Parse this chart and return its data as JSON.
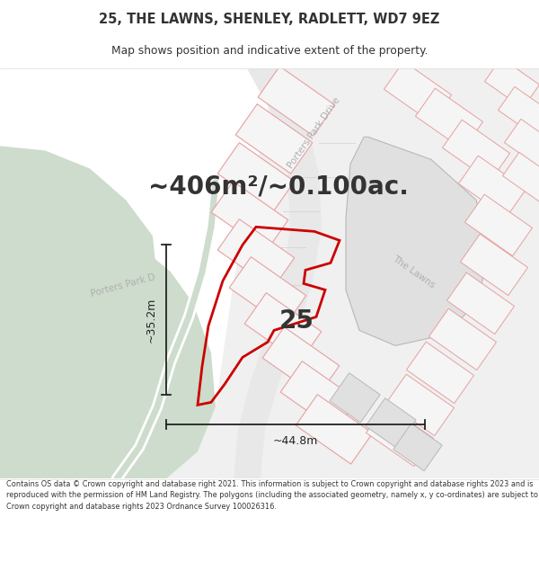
{
  "title_line1": "25, THE LAWNS, SHENLEY, RADLETT, WD7 9EZ",
  "title_line2": "Map shows position and indicative extent of the property.",
  "area_text": "~406m²/~0.100ac.",
  "dim_width": "~44.8m",
  "dim_height": "~35.2m",
  "property_number": "25",
  "footer": "Contains OS data © Crown copyright and database right 2021. This information is subject to Crown copyright and database rights 2023 and is reproduced with the permission of HM Land Registry. The polygons (including the associated geometry, namely x, y co-ordinates) are subject to Crown copyright and database rights 2023 Ordnance Survey 100026316.",
  "white": "#ffffff",
  "map_bg": "#f5f5f5",
  "green_color": "#cddccc",
  "plot_gray_fill": "#e0e0e0",
  "plot_gray_edge": "#b8b8b8",
  "pink_edge": "#e8a0a0",
  "red_outline": "#cc0000",
  "text_dark": "#333333",
  "text_road": "#b0b0b0",
  "measure_color": "#222222",
  "road_stripe": "#d8d8d8"
}
